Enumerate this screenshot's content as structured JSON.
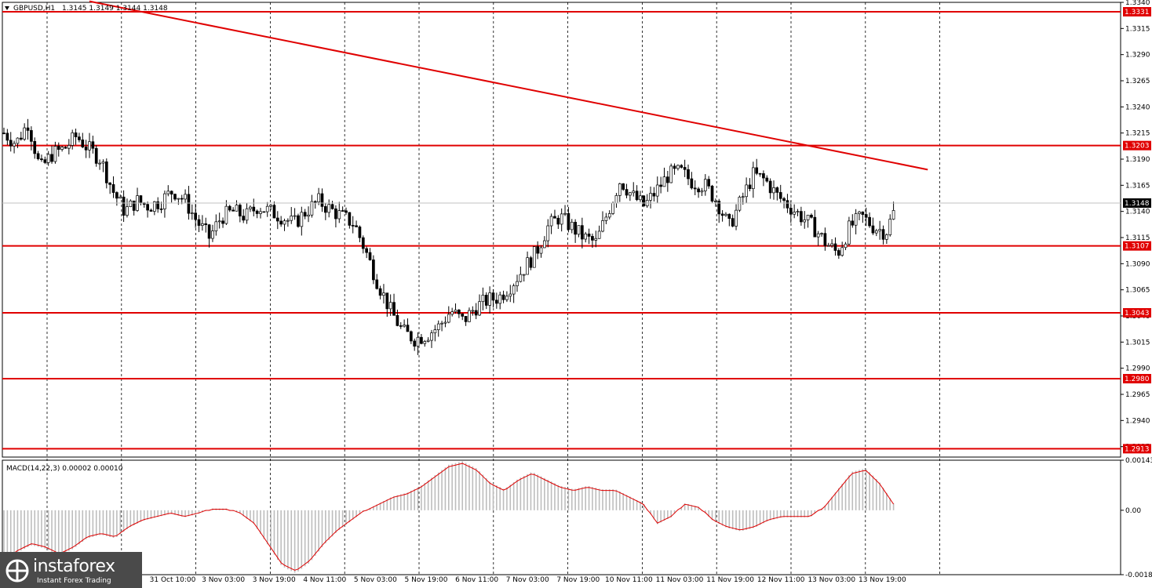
{
  "header": {
    "symbol_label": "GBPUSD,H1",
    "ohlc": "1.3145 1.3149 1.3144 1.3148"
  },
  "macd_label": "MACD(14,22,3) 0.00002 0.00010",
  "logo": {
    "brand": "instaforex",
    "tagline": "Instant Forex Trading"
  },
  "colors": {
    "level_line": "#e00000",
    "trendline": "#e00000",
    "candle": "#000000",
    "macd_hist": "#bdbdbd",
    "macd_signal": "#e00000",
    "current_price_bg": "#000000"
  },
  "chart_data": {
    "type": "candlestick",
    "ylim": [
      1.2905,
      1.334
    ],
    "y_ticks": [
      1.334,
      1.3315,
      1.329,
      1.3265,
      1.324,
      1.3215,
      1.319,
      1.3165,
      1.314,
      1.3115,
      1.309,
      1.3065,
      1.304,
      1.3015,
      1.299,
      1.2965,
      1.294,
      1.2915
    ],
    "x_labels": [
      "31 Oct 10:00",
      "3 Nov 03:00",
      "3 Nov 19:00",
      "4 Nov 11:00",
      "5 Nov 03:00",
      "5 Nov 19:00",
      "6 Nov 11:00",
      "7 Nov 03:00",
      "7 Nov 19:00",
      "10 Nov 11:00",
      "11 Nov 03:00",
      "11 Nov 19:00",
      "12 Nov 11:00",
      "13 Nov 03:00",
      "13 Nov 19:00"
    ],
    "current_price": 1.3148,
    "horizontal_levels": [
      1.3331,
      1.3203,
      1.3107,
      1.3043,
      1.298,
      1.2913
    ],
    "trendline": {
      "start_bar": 25,
      "start": 1.3341,
      "end_bar": 270,
      "end": 1.318
    },
    "close_path": [
      1.3215,
      1.3205,
      1.3225,
      1.318,
      1.3195,
      1.32,
      1.3212,
      1.32,
      1.319,
      1.316,
      1.314,
      1.315,
      1.3145,
      1.315,
      1.316,
      1.315,
      1.313,
      1.3115,
      1.3135,
      1.314,
      1.3135,
      1.3145,
      1.314,
      1.3135,
      1.3128,
      1.314,
      1.315,
      1.3142,
      1.3135,
      1.3128,
      1.31,
      1.307,
      1.3045,
      1.3025,
      1.3018,
      1.3022,
      1.303,
      1.3045,
      1.3035,
      1.3048,
      1.3055,
      1.3058,
      1.307,
      1.3085,
      1.31,
      1.3125,
      1.3135,
      1.3125,
      1.3115,
      1.311,
      1.314,
      1.317,
      1.3155,
      1.3145,
      1.316,
      1.3175,
      1.3178,
      1.3168,
      1.3165,
      1.315,
      1.3125,
      1.315,
      1.3175,
      1.317,
      1.3155,
      1.3145,
      1.3135,
      1.3125,
      1.311,
      1.31,
      1.3125,
      1.3135,
      1.3125,
      1.312,
      1.315,
      1.3165,
      1.3205,
      1.3195,
      1.317,
      1.3148
    ],
    "macd": {
      "ylim": [
        -0.00184,
        0.00143
      ],
      "y_ticks": [
        0.00143,
        0.0,
        -0.00184
      ],
      "hist_path": [
        -0.0015,
        -0.0012,
        -0.001,
        -0.0011,
        -0.0013,
        -0.0011,
        -0.0008,
        -0.0007,
        -0.0008,
        -0.0005,
        -0.0003,
        -0.0002,
        -0.0001,
        -0.0002,
        -0.0001,
        5e-05,
        5e-05,
        -0.0001,
        -0.0004,
        -0.001,
        -0.0016,
        -0.0018,
        -0.0015,
        -0.001,
        -0.0006,
        -0.0003,
        0.0,
        0.0002,
        0.0004,
        0.0005,
        0.0007,
        0.001,
        0.0013,
        0.0014,
        0.0012,
        0.0008,
        0.0006,
        0.0009,
        0.0011,
        0.0009,
        0.0007,
        0.0006,
        0.0007,
        0.0006,
        0.0006,
        0.0004,
        0.0002,
        -0.0004,
        -0.0002,
        0.0002,
        0.0001,
        -0.0003,
        -0.0005,
        -0.0006,
        -0.0005,
        -0.0003,
        -0.0002,
        -0.0002,
        -0.0002,
        0.0001,
        0.0006,
        0.0011,
        0.0012,
        0.0008,
        0.0002
      ],
      "signal_offset": 6e-05
    }
  }
}
